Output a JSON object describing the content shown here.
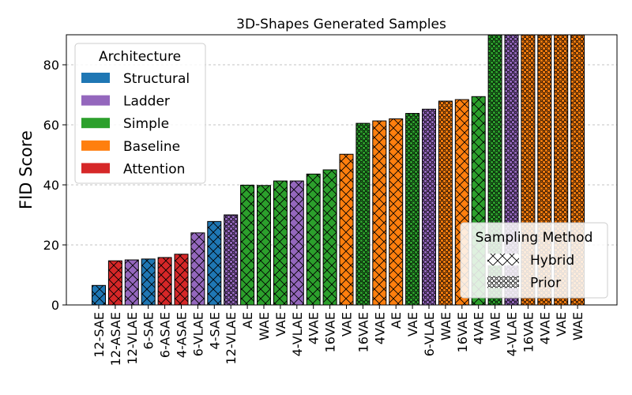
{
  "chart_data": {
    "type": "bar",
    "title": "3D-Shapes Generated Samples",
    "xlabel": "",
    "ylabel": "FID Score",
    "ylim": [
      0,
      90
    ],
    "yticks": [
      0,
      20,
      40,
      60,
      80
    ],
    "grid": "y-dashed",
    "colors": {
      "Structural": "#1f77b4",
      "Ladder": "#9467bd",
      "Simple": "#2ca02c",
      "Baseline": "#ff7f0e",
      "Attention": "#d62728"
    },
    "legend_architecture": {
      "title": "Architecture",
      "placement": "top-left",
      "entries": [
        "Structural",
        "Ladder",
        "Simple",
        "Baseline",
        "Attention"
      ]
    },
    "legend_sampling": {
      "title": "Sampling Method",
      "placement": "bottom-right",
      "entries": [
        {
          "label": "Hybrid",
          "pattern": "cross-hatch"
        },
        {
          "label": "Prior",
          "pattern": "dots"
        }
      ]
    },
    "bars": [
      {
        "label": "12-SAE",
        "value": 6.5,
        "architecture": "Structural",
        "method": "Hybrid"
      },
      {
        "label": "12-ASAE",
        "value": 14.7,
        "architecture": "Attention",
        "method": "Hybrid"
      },
      {
        "label": "12-VLAE",
        "value": 15.0,
        "architecture": "Ladder",
        "method": "Hybrid"
      },
      {
        "label": "6-SAE",
        "value": 15.3,
        "architecture": "Structural",
        "method": "Hybrid"
      },
      {
        "label": "6-ASAE",
        "value": 15.8,
        "architecture": "Attention",
        "method": "Hybrid"
      },
      {
        "label": "4-ASAE",
        "value": 16.9,
        "architecture": "Attention",
        "method": "Hybrid"
      },
      {
        "label": "6-VLAE",
        "value": 24.0,
        "architecture": "Ladder",
        "method": "Hybrid"
      },
      {
        "label": "4-SAE",
        "value": 27.8,
        "architecture": "Structural",
        "method": "Hybrid"
      },
      {
        "label": "12-VLAE",
        "value": 30.0,
        "architecture": "Ladder",
        "method": "Prior"
      },
      {
        "label": "AE",
        "value": 39.9,
        "architecture": "Simple",
        "method": "Hybrid"
      },
      {
        "label": "WAE",
        "value": 39.8,
        "architecture": "Simple",
        "method": "Hybrid"
      },
      {
        "label": "VAE",
        "value": 41.3,
        "architecture": "Simple",
        "method": "Hybrid"
      },
      {
        "label": "4-VLAE",
        "value": 41.3,
        "architecture": "Ladder",
        "method": "Hybrid"
      },
      {
        "label": "4VAE",
        "value": 43.6,
        "architecture": "Simple",
        "method": "Hybrid"
      },
      {
        "label": "16VAE",
        "value": 45.0,
        "architecture": "Simple",
        "method": "Hybrid"
      },
      {
        "label": "VAE",
        "value": 50.2,
        "architecture": "Baseline",
        "method": "Hybrid"
      },
      {
        "label": "16VAE",
        "value": 60.5,
        "architecture": "Simple",
        "method": "Prior"
      },
      {
        "label": "4VAE",
        "value": 61.3,
        "architecture": "Baseline",
        "method": "Hybrid"
      },
      {
        "label": "AE",
        "value": 62.0,
        "architecture": "Baseline",
        "method": "Hybrid"
      },
      {
        "label": "VAE",
        "value": 63.8,
        "architecture": "Simple",
        "method": "Prior"
      },
      {
        "label": "6-VLAE",
        "value": 65.2,
        "architecture": "Ladder",
        "method": "Prior"
      },
      {
        "label": "WAE",
        "value": 67.9,
        "architecture": "Baseline",
        "method": "Prior"
      },
      {
        "label": "16VAE",
        "value": 68.4,
        "architecture": "Baseline",
        "method": "Hybrid"
      },
      {
        "label": "4VAE",
        "value": 69.4,
        "architecture": "Simple",
        "method": "Hybrid"
      },
      {
        "label": "WAE",
        "value": 90,
        "architecture": "Simple",
        "method": "Prior"
      },
      {
        "label": "4-VLAE",
        "value": 90,
        "architecture": "Ladder",
        "method": "Prior"
      },
      {
        "label": "16VAE",
        "value": 90,
        "architecture": "Baseline",
        "method": "Prior"
      },
      {
        "label": "4VAE",
        "value": 90,
        "architecture": "Baseline",
        "method": "Prior"
      },
      {
        "label": "VAE",
        "value": 90,
        "architecture": "Baseline",
        "method": "Prior"
      },
      {
        "label": "WAE",
        "value": 90,
        "architecture": "Baseline",
        "method": "Prior"
      }
    ]
  }
}
